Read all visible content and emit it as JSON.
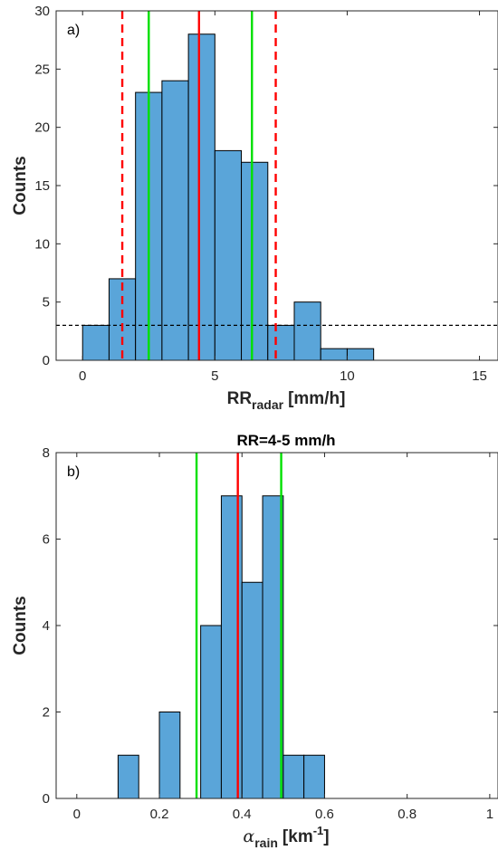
{
  "chart_data": [
    {
      "type": "bar",
      "panel_label": "a)",
      "title": "",
      "xlabel_main": "RR",
      "xlabel_sub": "radar",
      "xlabel_unit": "[mm/h]",
      "ylabel": "Counts",
      "xlim": [
        -1,
        15.7
      ],
      "ylim": [
        0,
        30
      ],
      "xticks": [
        0,
        5,
        10,
        15
      ],
      "yticks": [
        0,
        5,
        10,
        15,
        20,
        25,
        30
      ],
      "bin_edges": [
        0,
        1,
        2,
        3,
        4,
        5,
        6,
        7,
        8,
        9,
        10,
        11
      ],
      "values": [
        3,
        7,
        23,
        24,
        28,
        18,
        17,
        3,
        5,
        1,
        1
      ],
      "bar_color": "#5aa5d9",
      "vlines": [
        {
          "x": 1.5,
          "color": "#ff0000",
          "style": "dashed"
        },
        {
          "x": 2.5,
          "color": "#00e000",
          "style": "solid"
        },
        {
          "x": 4.4,
          "color": "#ff0000",
          "style": "solid"
        },
        {
          "x": 6.4,
          "color": "#00e000",
          "style": "solid"
        },
        {
          "x": 7.3,
          "color": "#ff0000",
          "style": "dashed"
        }
      ],
      "hlines": [
        {
          "y": 3,
          "color": "#000000",
          "style": "dashed"
        }
      ]
    },
    {
      "type": "bar",
      "panel_label": "b)",
      "title": "RR=4-5 mm/h",
      "xlabel_main": "α",
      "xlabel_sub": "rain",
      "xlabel_unit": "[km",
      "xlabel_sup": "-1",
      "xlabel_close": "]",
      "ylabel": "Counts",
      "xlim": [
        -0.05,
        1.02
      ],
      "ylim": [
        0,
        8
      ],
      "xticks": [
        0,
        0.2,
        0.4,
        0.6,
        0.8,
        1
      ],
      "yticks": [
        0,
        2,
        4,
        6,
        8
      ],
      "bin_edges": [
        0.1,
        0.15,
        0.2,
        0.25,
        0.3,
        0.35,
        0.4,
        0.45,
        0.5,
        0.55,
        0.6
      ],
      "values": [
        1,
        0,
        2,
        0,
        4,
        7,
        5,
        7,
        1,
        1
      ],
      "bar_color": "#5aa5d9",
      "vlines": [
        {
          "x": 0.29,
          "color": "#00e000",
          "style": "solid"
        },
        {
          "x": 0.39,
          "color": "#ff0000",
          "style": "solid"
        },
        {
          "x": 0.495,
          "color": "#00e000",
          "style": "solid"
        }
      ],
      "hlines": []
    }
  ]
}
